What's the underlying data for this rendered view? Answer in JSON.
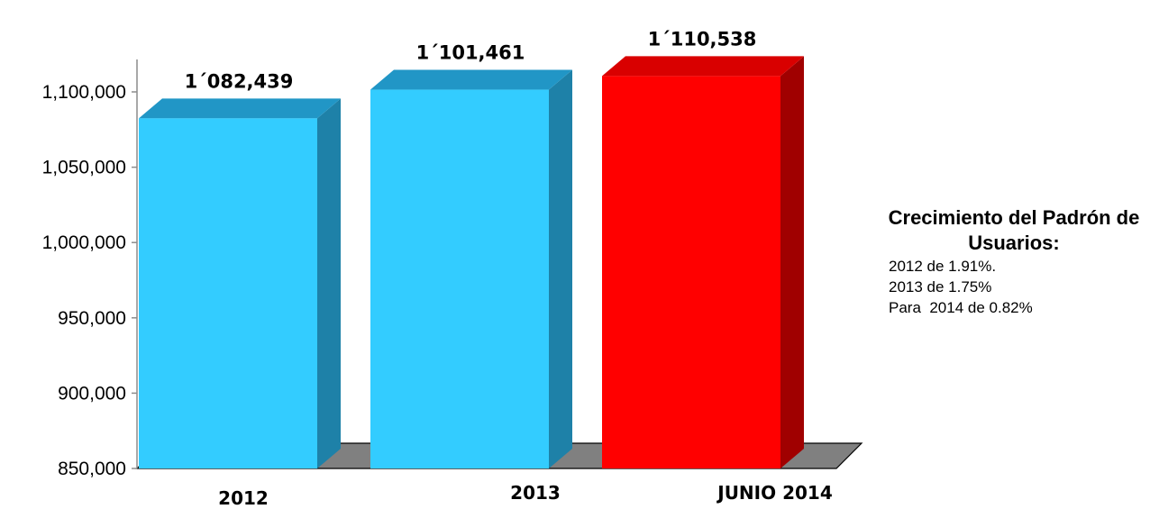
{
  "chart_data": {
    "type": "bar",
    "categories": [
      "2012",
      "2013",
      "JUNIO 2014"
    ],
    "values": [
      1082439,
      1101461,
      1110538
    ],
    "data_labels": [
      "1´082,439",
      "1´101,461",
      "1´110,538"
    ],
    "title": "",
    "xlabel": "",
    "ylabel": "",
    "ylim": [
      850000,
      1100000
    ],
    "yticks": [
      850000,
      900000,
      950000,
      1000000,
      1050000,
      1100000
    ],
    "ytick_labels": [
      "850,000",
      "900,000",
      "950,000",
      "1,000,000",
      "1,050,000",
      "1,100,000"
    ],
    "grid": false,
    "style": "3d",
    "colors": [
      "#33CCFF",
      "#33CCFF",
      "#FF0000"
    ],
    "side_colors": [
      "#1E81A8",
      "#1E81A8",
      "#A00000"
    ],
    "top_colors": [
      "#2196C6",
      "#2196C6",
      "#D90000"
    ],
    "floor_color": "#808080"
  },
  "note": {
    "title": "Crecimiento del Padrón de Usuarios:",
    "lines": [
      "2012 de 1.91%.",
      "2013 de 1.75%",
      "Para  2014 de 0.82%"
    ]
  }
}
